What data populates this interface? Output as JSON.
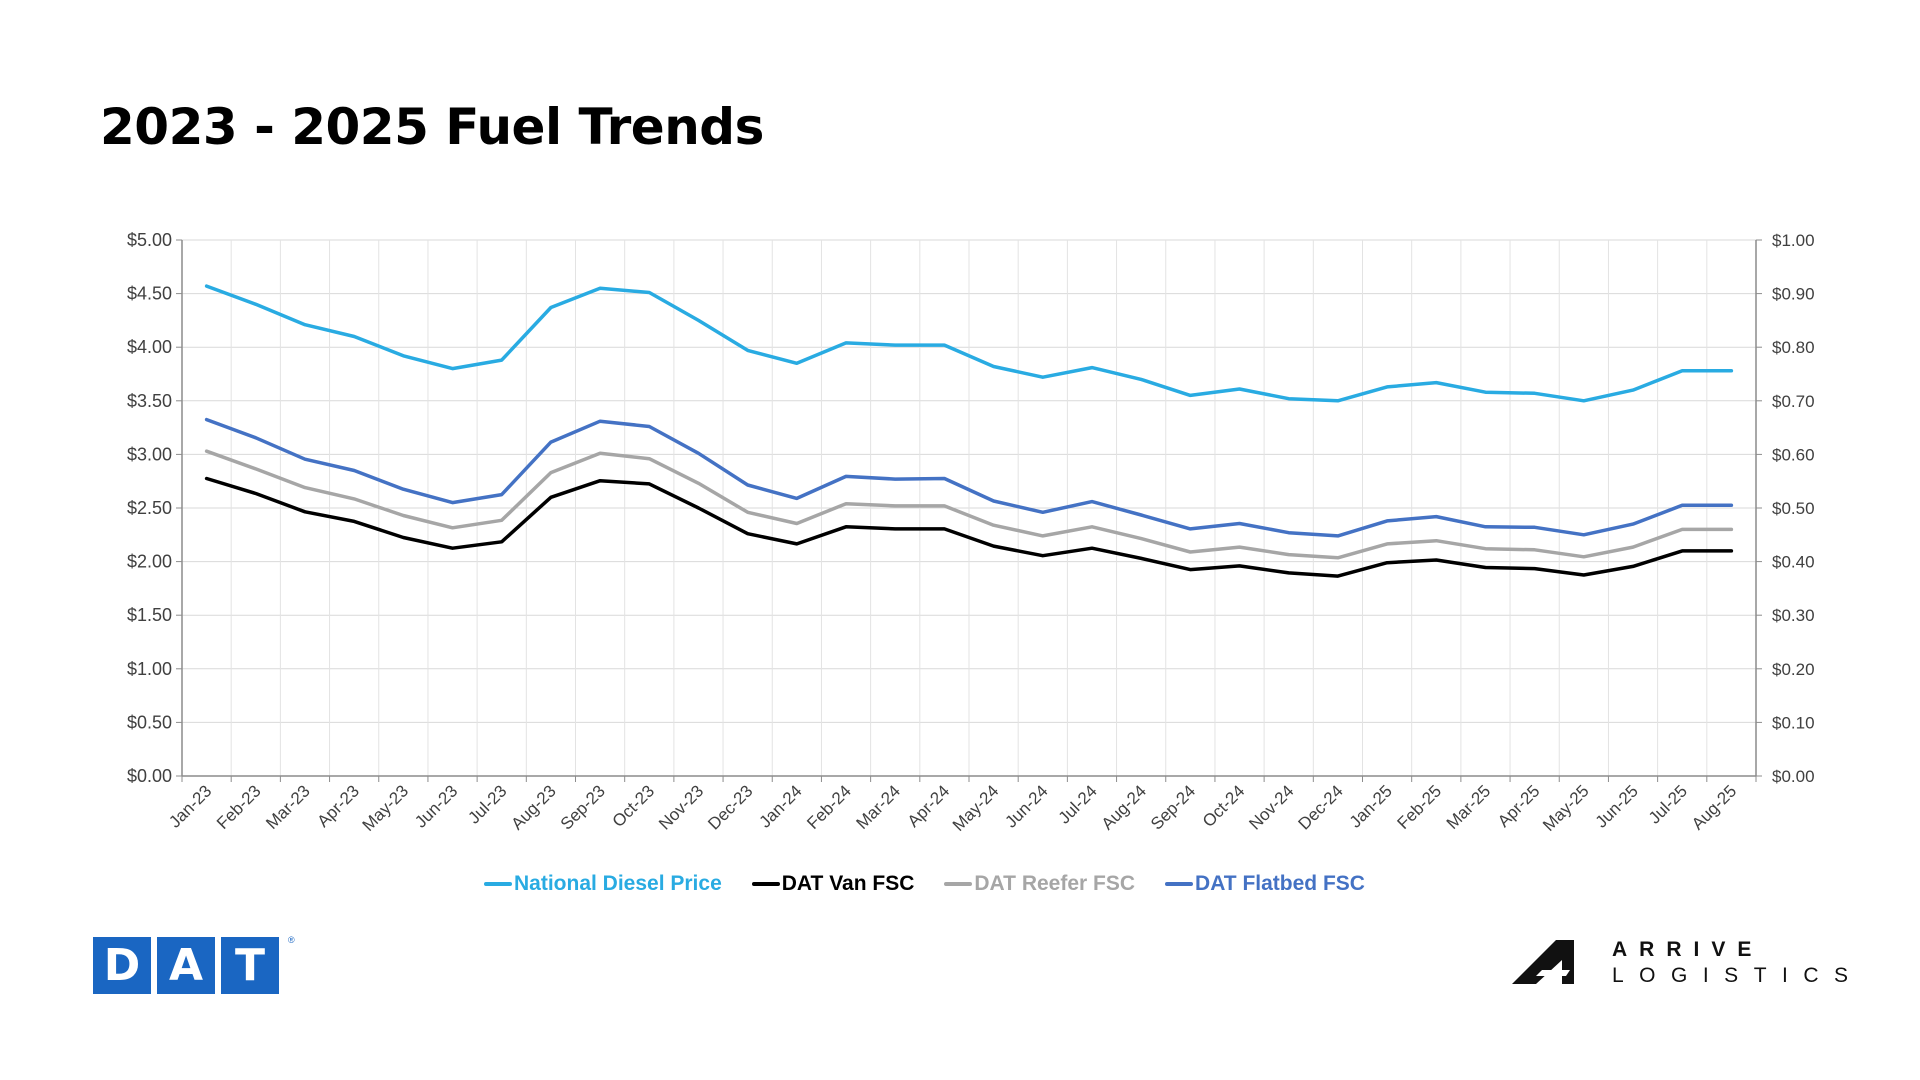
{
  "title": "2023 - 2025 Fuel Trends",
  "colors": {
    "diesel": "#29abe2",
    "van": "#000000",
    "reefer": "#a6a6a6",
    "flatbed": "#4472c4",
    "dat_blue": "#1a66c2"
  },
  "logos": {
    "dat_letters": [
      "D",
      "A",
      "T"
    ],
    "dat_reg": "®",
    "arrive": "ARRIVE",
    "logistics": "LOGISTICS"
  },
  "chart_data": {
    "type": "line",
    "title": "2023 - 2025 Fuel Trends",
    "categories": [
      "Jan-23",
      "Feb-23",
      "Mar-23",
      "Apr-23",
      "May-23",
      "Jun-23",
      "Jul-23",
      "Aug-23",
      "Sep-23",
      "Oct-23",
      "Nov-23",
      "Dec-23",
      "Jan-24",
      "Feb-24",
      "Mar-24",
      "Apr-24",
      "May-24",
      "Jun-24",
      "Jul-24",
      "Aug-24",
      "Sep-24",
      "Oct-24",
      "Nov-24",
      "Dec-24",
      "Jan-25",
      "Feb-25",
      "Mar-25",
      "Apr-25",
      "May-25",
      "Jun-25",
      "Jul-25",
      "Aug-25"
    ],
    "y_left": {
      "min": 0,
      "max": 5,
      "step": 0.5,
      "tick_labels": [
        "$0.00",
        "$0.50",
        "$1.00",
        "$1.50",
        "$2.00",
        "$2.50",
        "$3.00",
        "$3.50",
        "$4.00",
        "$4.50",
        "$5.00"
      ]
    },
    "y_right": {
      "min": 0,
      "max": 1,
      "step": 0.1,
      "tick_labels": [
        "$0.00",
        "$0.10",
        "$0.20",
        "$0.30",
        "$0.40",
        "$0.50",
        "$0.60",
        "$0.70",
        "$0.80",
        "$0.90",
        "$1.00"
      ]
    },
    "grid": true,
    "legend_position": "bottom",
    "series": [
      {
        "name": "National Diesel Price",
        "axis": "left",
        "color": "#29abe2",
        "values": [
          4.57,
          4.4,
          4.21,
          4.1,
          3.92,
          3.8,
          3.88,
          4.37,
          4.55,
          4.51,
          4.25,
          3.97,
          3.85,
          4.04,
          4.02,
          4.02,
          3.82,
          3.72,
          3.81,
          3.7,
          3.55,
          3.61,
          3.52,
          3.5,
          3.63,
          3.67,
          3.58,
          3.57,
          3.5,
          3.6,
          3.78,
          3.78
        ]
      },
      {
        "name": "DAT Van FSC",
        "axis": "right",
        "color": "#000000",
        "values": [
          0.555,
          0.527,
          0.493,
          0.475,
          0.445,
          0.425,
          0.437,
          0.52,
          0.551,
          0.545,
          0.5,
          0.452,
          0.433,
          0.465,
          0.461,
          0.461,
          0.429,
          0.411,
          0.425,
          0.406,
          0.385,
          0.392,
          0.379,
          0.373,
          0.398,
          0.403,
          0.389,
          0.387,
          0.375,
          0.391,
          0.42,
          0.42
        ]
      },
      {
        "name": "DAT Reefer FSC",
        "axis": "right",
        "color": "#a6a6a6",
        "values": [
          0.606,
          0.573,
          0.538,
          0.517,
          0.486,
          0.463,
          0.477,
          0.566,
          0.602,
          0.592,
          0.546,
          0.492,
          0.471,
          0.508,
          0.504,
          0.504,
          0.468,
          0.448,
          0.465,
          0.443,
          0.418,
          0.427,
          0.413,
          0.407,
          0.433,
          0.439,
          0.424,
          0.422,
          0.409,
          0.427,
          0.46,
          0.46
        ]
      },
      {
        "name": "DAT Flatbed FSC",
        "axis": "right",
        "color": "#4472c4",
        "values": [
          0.665,
          0.631,
          0.591,
          0.57,
          0.535,
          0.51,
          0.525,
          0.623,
          0.662,
          0.652,
          0.602,
          0.543,
          0.518,
          0.559,
          0.554,
          0.555,
          0.513,
          0.492,
          0.512,
          0.487,
          0.461,
          0.471,
          0.454,
          0.448,
          0.476,
          0.484,
          0.465,
          0.464,
          0.45,
          0.47,
          0.505,
          0.505
        ]
      }
    ]
  }
}
